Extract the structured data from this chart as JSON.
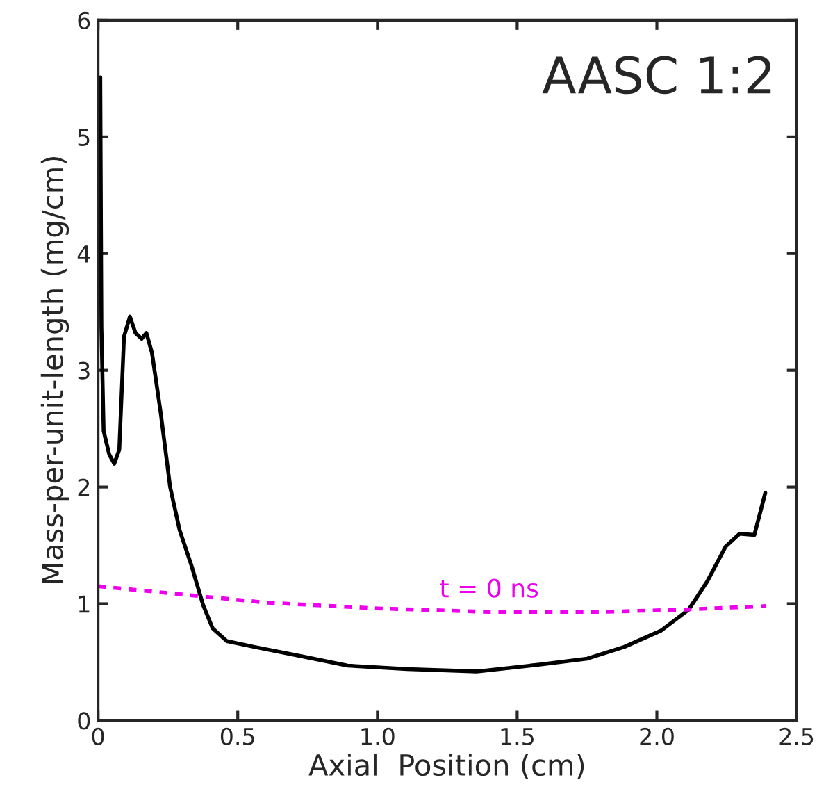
{
  "chart_data": {
    "type": "line",
    "title": "AASC 1:2",
    "xlabel": "Axial  Position (cm)",
    "ylabel": "Mass-per-unit-length (mg/cm)",
    "xlim": [
      0,
      2.5
    ],
    "ylim": [
      0,
      6
    ],
    "xticks": [
      0,
      0.5,
      {
        "value": 1,
        "label": "1.0"
      },
      1.5,
      {
        "value": 2,
        "label": "2.0"
      },
      2.5
    ],
    "yticks": [
      0,
      1,
      2,
      3,
      4,
      5,
      6
    ],
    "grid": false,
    "legend": false,
    "series": [
      {
        "color": "#000000",
        "line_style": "solid",
        "x": [
          0.008,
          0.012,
          0.02,
          0.04,
          0.058,
          0.076,
          0.093,
          0.114,
          0.134,
          0.156,
          0.173,
          0.193,
          0.224,
          0.258,
          0.292,
          0.334,
          0.376,
          0.41,
          0.461,
          0.56,
          0.728,
          0.893,
          1.107,
          1.355,
          1.586,
          1.751,
          1.883,
          2.015,
          2.114,
          2.18,
          2.246,
          2.296,
          2.349,
          2.388
        ],
        "values": [
          5.51,
          3.37,
          2.48,
          2.28,
          2.2,
          2.32,
          3.29,
          3.46,
          3.32,
          3.27,
          3.32,
          3.15,
          2.64,
          2.0,
          1.63,
          1.33,
          0.99,
          0.79,
          0.68,
          0.63,
          0.55,
          0.47,
          0.44,
          0.42,
          0.48,
          0.53,
          0.63,
          0.77,
          0.95,
          1.19,
          1.49,
          1.6,
          1.59,
          1.95
        ]
      },
      {
        "name": "t = 0 ns",
        "color": "#ee00ee",
        "line_style": "dashed",
        "x": [
          0,
          0.3,
          0.6,
          1.0,
          1.4,
          1.8,
          2.1,
          2.39
        ],
        "values": [
          1.15,
          1.08,
          1.01,
          0.96,
          0.93,
          0.93,
          0.95,
          0.98
        ]
      }
    ]
  }
}
